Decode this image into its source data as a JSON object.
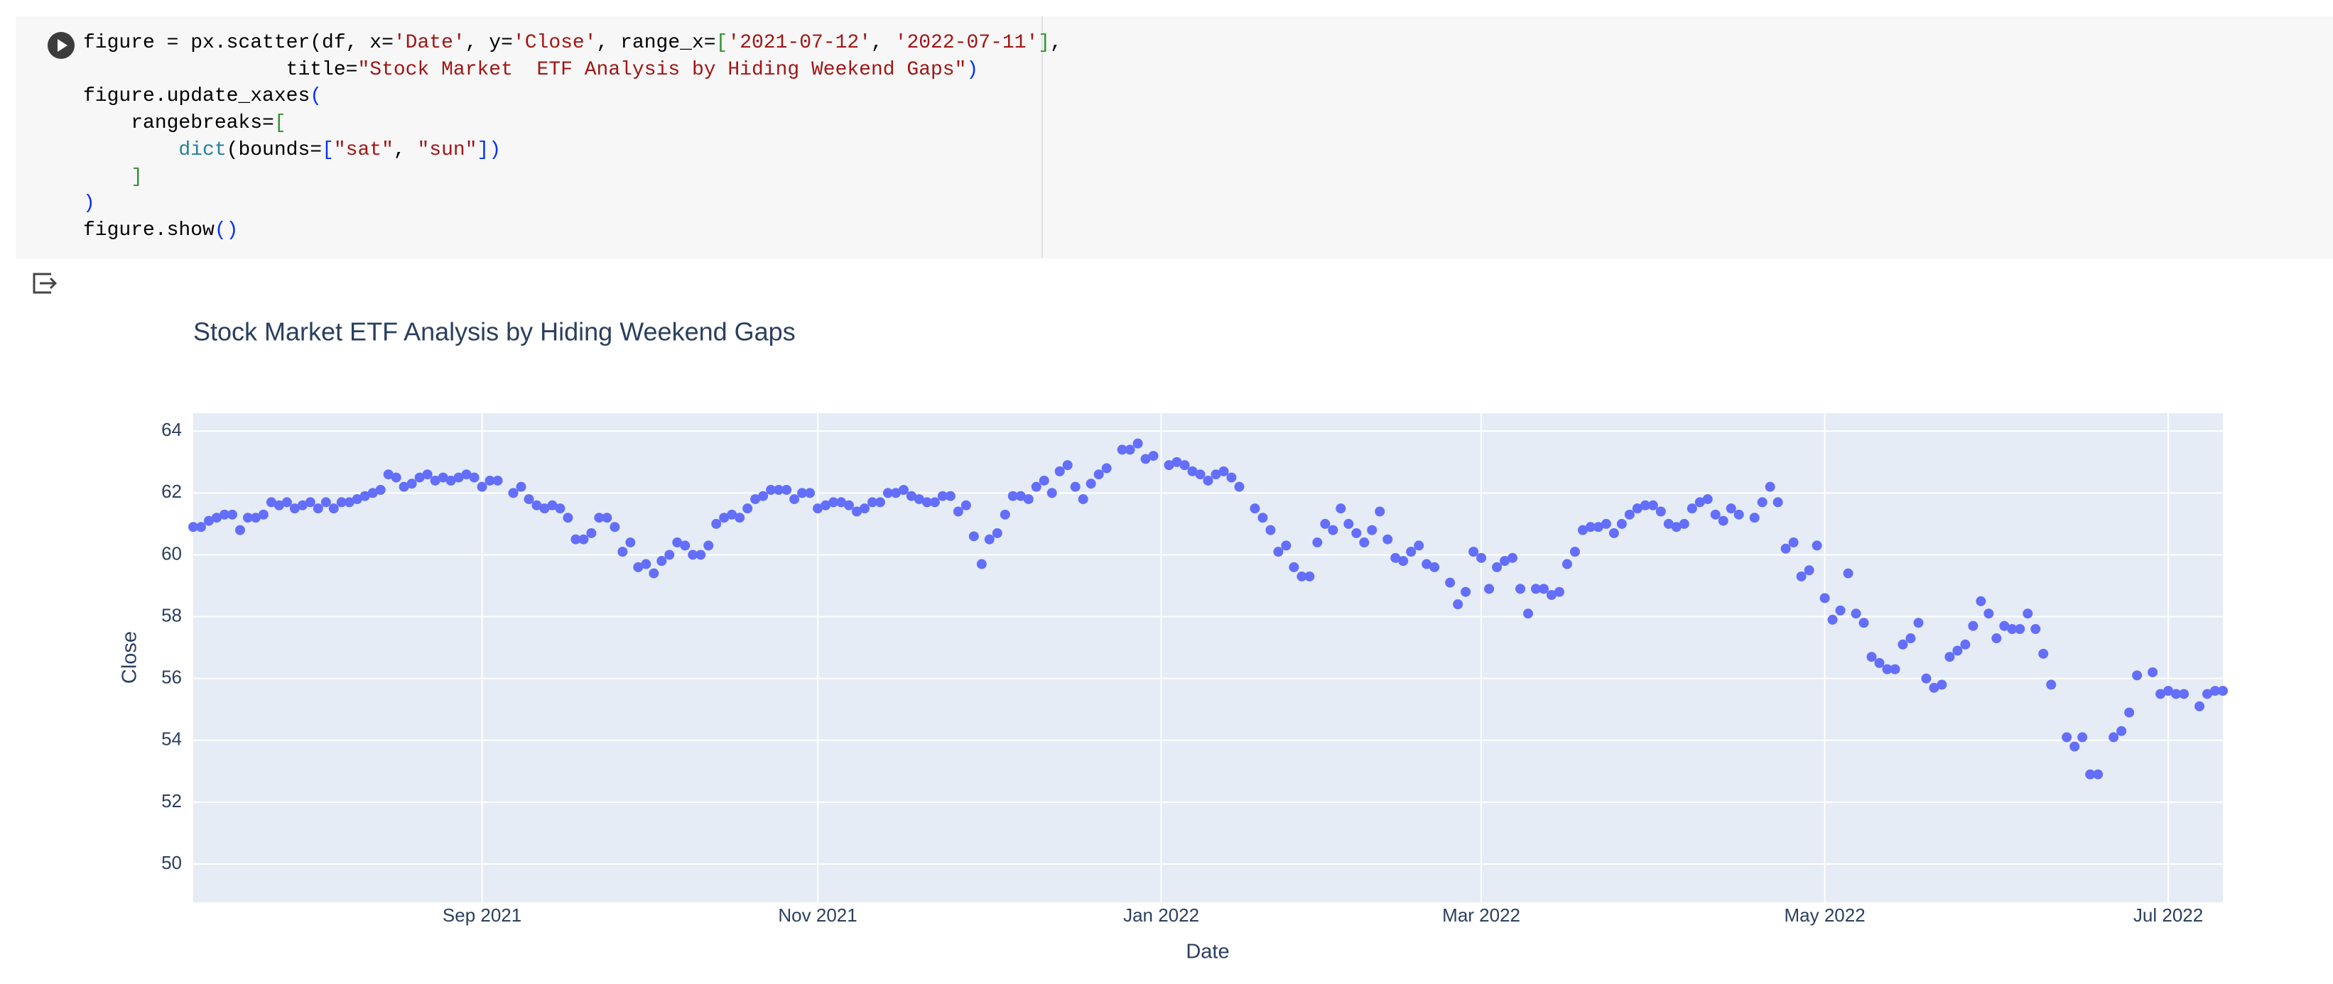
{
  "code": {
    "lines": [
      [
        {
          "text": "figure = px.scatter(df, x=",
          "color": "#000000"
        },
        {
          "text": "'Date'",
          "color": "#a31515"
        },
        {
          "text": ", y=",
          "color": "#000000"
        },
        {
          "text": "'Close'",
          "color": "#a31515"
        },
        {
          "text": ", range_x=",
          "color": "#000000"
        },
        {
          "text": "[",
          "color": "#319331"
        },
        {
          "text": "'2021-07-12'",
          "color": "#a31515"
        },
        {
          "text": ", ",
          "color": "#000000"
        },
        {
          "text": "'2022-07-11'",
          "color": "#a31515"
        },
        {
          "text": "]",
          "color": "#319331"
        },
        {
          "text": ",",
          "color": "#000000"
        }
      ],
      [
        {
          "text": "                 title=",
          "color": "#000000"
        },
        {
          "text": "\"Stock Market  ETF Analysis by Hiding Weekend Gaps\"",
          "color": "#a31515"
        },
        {
          "text": ")",
          "color": "#0431fa"
        }
      ],
      [
        {
          "text": "figure.update_xaxes",
          "color": "#000000"
        },
        {
          "text": "(",
          "color": "#0431fa"
        }
      ],
      [
        {
          "text": "    rangebreaks=",
          "color": "#000000"
        },
        {
          "text": "[",
          "color": "#319331"
        }
      ],
      [
        {
          "text": "        ",
          "color": "#000000"
        },
        {
          "text": "dict",
          "color": "#267f99"
        },
        {
          "text": "(bounds=",
          "color": "#000000"
        },
        {
          "text": "[",
          "color": "#0431fa"
        },
        {
          "text": "\"sat\"",
          "color": "#a31515"
        },
        {
          "text": ", ",
          "color": "#000000"
        },
        {
          "text": "\"sun\"",
          "color": "#a31515"
        },
        {
          "text": "])",
          "color": "#0431fa"
        }
      ],
      [
        {
          "text": "    ]",
          "color": "#319331"
        }
      ],
      [
        {
          "text": ")",
          "color": "#0431fa"
        }
      ],
      [
        {
          "text": "figure.show",
          "color": "#000000"
        },
        {
          "text": "()",
          "color": "#0431fa"
        }
      ]
    ]
  },
  "chart_data": {
    "type": "scatter",
    "title": "Stock Market  ETF Analysis by Hiding Weekend Gaps",
    "x_label": "Date",
    "y_label": "Close",
    "color": "#636efa",
    "grid": true,
    "xlim": [
      0,
      260
    ],
    "xticks": [
      {
        "value": 37,
        "label": "Sep 2021"
      },
      {
        "value": 80,
        "label": "Nov 2021"
      },
      {
        "value": 124,
        "label": "Jan 2022"
      },
      {
        "value": 165,
        "label": "Mar 2022"
      },
      {
        "value": 209,
        "label": "May 2022"
      },
      {
        "value": 253,
        "label": "Jul 2022"
      }
    ],
    "ylim": [
      48.76,
      64.58
    ],
    "yticks": [
      50,
      52,
      54,
      56,
      58,
      60,
      62,
      64
    ],
    "values": [
      60.9,
      60.9,
      61.1,
      61.2,
      61.3,
      61.3,
      60.8,
      61.2,
      61.2,
      61.3,
      61.7,
      61.6,
      61.7,
      61.5,
      61.6,
      61.7,
      61.5,
      61.7,
      61.5,
      61.7,
      61.7,
      61.8,
      61.9,
      62.0,
      62.1,
      62.6,
      62.5,
      62.2,
      62.3,
      62.5,
      62.6,
      62.4,
      62.5,
      62.4,
      62.5,
      62.6,
      62.5,
      62.2,
      62.4,
      62.4,
      null,
      62.0,
      62.2,
      61.8,
      61.6,
      61.5,
      61.6,
      61.5,
      61.2,
      60.5,
      60.5,
      60.7,
      61.2,
      61.2,
      60.9,
      60.1,
      60.4,
      59.6,
      59.7,
      59.4,
      59.8,
      60.0,
      60.4,
      60.3,
      60.0,
      60.0,
      60.3,
      61.0,
      61.2,
      61.3,
      61.2,
      61.5,
      61.8,
      61.9,
      62.1,
      62.1,
      62.1,
      61.8,
      62.0,
      62.0,
      61.5,
      61.6,
      61.7,
      61.7,
      61.6,
      61.4,
      61.5,
      61.7,
      61.7,
      62.0,
      62.0,
      62.1,
      61.9,
      61.8,
      61.7,
      61.7,
      61.9,
      61.9,
      61.4,
      61.6,
      60.6,
      59.7,
      60.5,
      60.7,
      61.3,
      61.9,
      61.9,
      61.8,
      62.2,
      62.4,
      62.0,
      62.7,
      62.9,
      62.2,
      61.8,
      62.3,
      62.6,
      62.8,
      null,
      63.4,
      63.4,
      63.6,
      63.1,
      63.2,
      null,
      62.9,
      63.0,
      62.9,
      62.7,
      62.6,
      62.4,
      62.6,
      62.7,
      62.5,
      62.2,
      null,
      61.5,
      61.2,
      60.8,
      60.1,
      60.3,
      59.6,
      59.3,
      59.3,
      60.4,
      61.0,
      60.8,
      61.5,
      61.0,
      60.7,
      60.4,
      60.8,
      61.4,
      60.5,
      59.9,
      59.8,
      60.1,
      60.3,
      59.7,
      59.6,
      null,
      59.1,
      58.4,
      58.8,
      60.1,
      59.9,
      58.9,
      59.6,
      59.8,
      59.9,
      58.9,
      58.1,
      58.9,
      58.9,
      58.7,
      58.8,
      59.7,
      60.1,
      60.8,
      60.9,
      60.9,
      61.0,
      60.7,
      61.0,
      61.3,
      61.5,
      61.6,
      61.6,
      61.4,
      61.0,
      60.9,
      61.0,
      61.5,
      61.7,
      61.8,
      61.3,
      61.1,
      61.5,
      61.3,
      null,
      61.2,
      61.7,
      62.2,
      61.7,
      60.2,
      60.4,
      59.3,
      59.5,
      60.3,
      58.6,
      57.9,
      58.2,
      59.4,
      58.1,
      57.8,
      56.7,
      56.5,
      56.3,
      56.3,
      57.1,
      57.3,
      57.8,
      56.0,
      55.7,
      55.8,
      56.7,
      56.9,
      57.1,
      57.7,
      58.5,
      58.1,
      57.3,
      57.7,
      57.6,
      57.6,
      58.1,
      57.6,
      56.8,
      55.8,
      null,
      54.1,
      53.8,
      54.1,
      52.9,
      52.9,
      null,
      54.1,
      54.3,
      54.9,
      56.1,
      null,
      56.2,
      55.5,
      55.6,
      55.5,
      55.5,
      null,
      55.1,
      55.5,
      55.6,
      55.6
    ]
  }
}
